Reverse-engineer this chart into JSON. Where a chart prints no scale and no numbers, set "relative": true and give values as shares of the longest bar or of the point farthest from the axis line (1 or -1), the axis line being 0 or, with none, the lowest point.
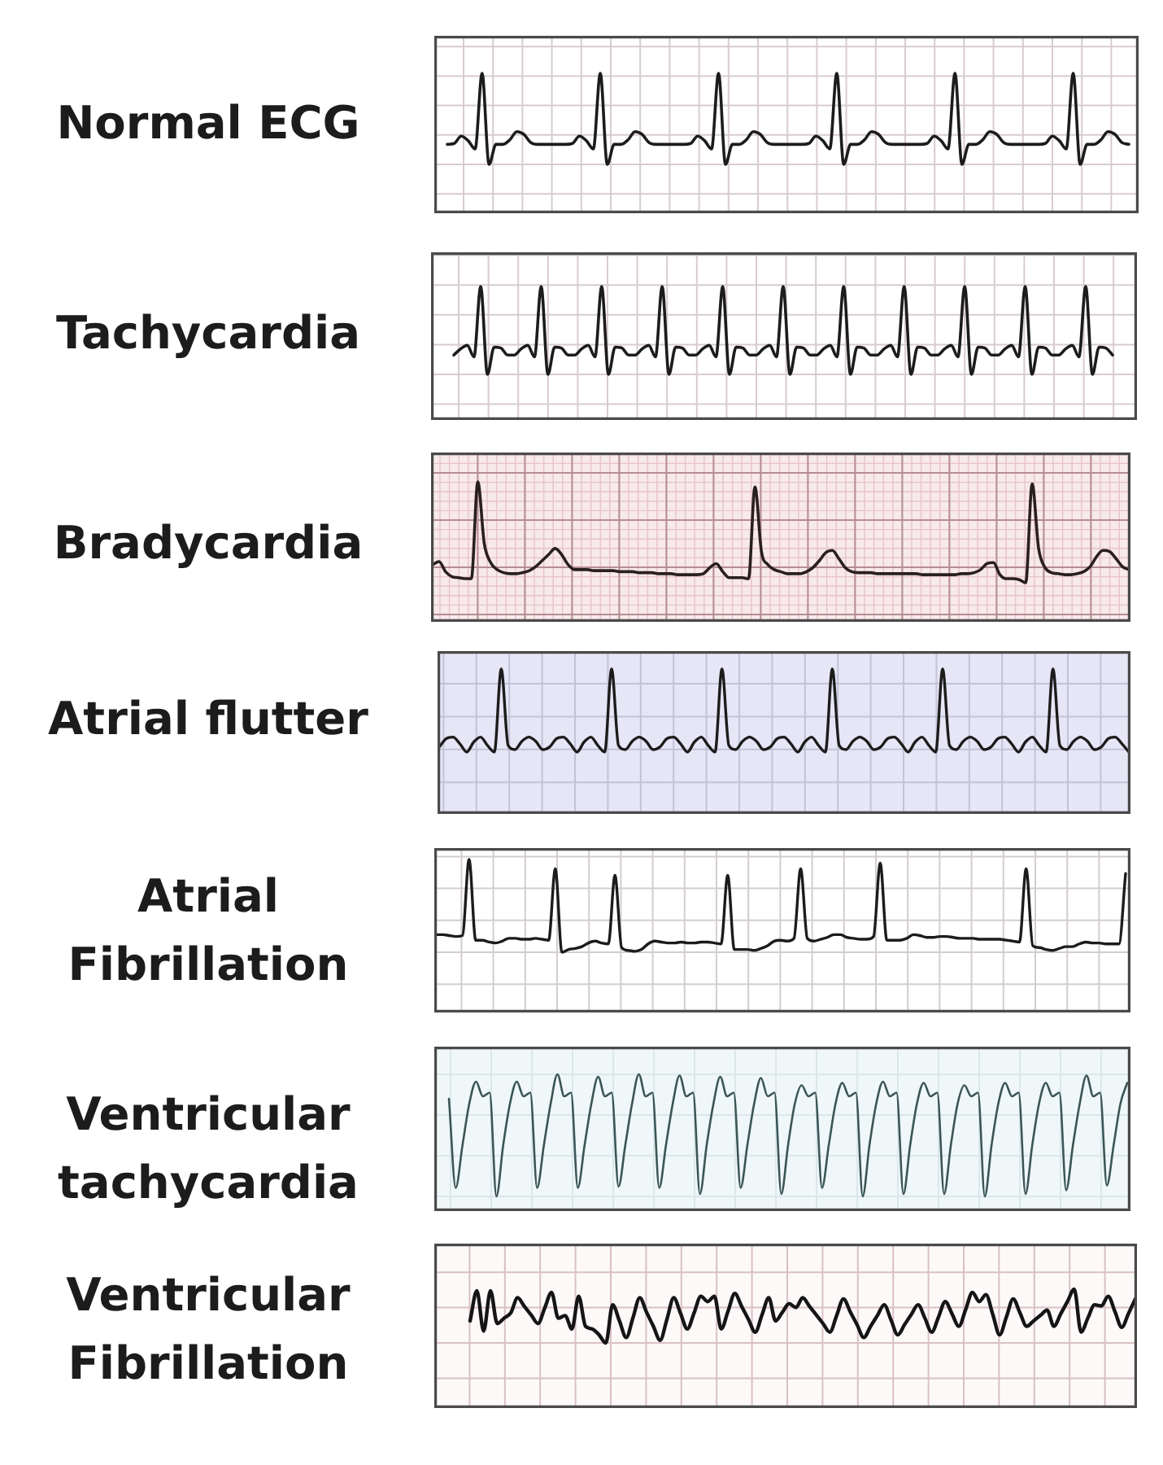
{
  "chart_data": [
    {
      "type": "line",
      "title": "Normal ECG",
      "relative": true,
      "grid": true,
      "color": "#1c1c1c",
      "categories": [
        null,
        null,
        null,
        null,
        null,
        null,
        null,
        null,
        null,
        null,
        null,
        null,
        null,
        null,
        null,
        null,
        null,
        null,
        null,
        null,
        null,
        null,
        null,
        null,
        null,
        null,
        null,
        null,
        null,
        null,
        null,
        null,
        null,
        null,
        null,
        null,
        null,
        null,
        null,
        null,
        null,
        null,
        null,
        null,
        null,
        null,
        null,
        null,
        null,
        null,
        null,
        null,
        null,
        null,
        null,
        null,
        null,
        null,
        null,
        null,
        null,
        null,
        null,
        null,
        null,
        null,
        null,
        null,
        null,
        null,
        null,
        null,
        null,
        null,
        null,
        null,
        null,
        null,
        null,
        null,
        null,
        null,
        null,
        null,
        null,
        null,
        null,
        null,
        null,
        null,
        null,
        null,
        null,
        null,
        null,
        null,
        null,
        null,
        null
      ],
      "values": [
        0.22,
        0.23,
        0.31,
        0.26,
        0.17,
        1,
        0,
        0.22,
        0.22,
        0.27,
        0.36,
        0.33,
        0.24,
        0.22,
        0.22,
        0.22,
        0.22,
        0.22,
        0.23,
        0.31,
        0.26,
        0.17,
        1,
        0,
        0.22,
        0.22,
        0.27,
        0.36,
        0.33,
        0.24,
        0.22,
        0.22,
        0.22,
        0.22,
        0.22,
        0.23,
        0.31,
        0.26,
        0.17,
        1,
        0,
        0.22,
        0.22,
        0.27,
        0.36,
        0.33,
        0.24,
        0.22,
        0.22,
        0.22,
        0.22,
        0.22,
        0.23,
        0.31,
        0.26,
        0.17,
        1,
        0,
        0.22,
        0.22,
        0.27,
        0.36,
        0.33,
        0.24,
        0.22,
        0.22,
        0.22,
        0.22,
        0.22,
        0.23,
        0.31,
        0.26,
        0.17,
        1,
        0,
        0.22,
        0.22,
        0.27,
        0.36,
        0.33,
        0.24,
        0.22,
        0.22,
        0.22,
        0.22,
        0.22,
        0.23,
        0.31,
        0.26,
        0.17,
        1,
        0,
        0.22,
        0.22,
        0.27,
        0.36,
        0.33,
        0.24,
        0.22
      ]
    },
    {
      "type": "line",
      "title": "Tachycardia",
      "relative": true,
      "grid": true,
      "color": "#1c1c1c",
      "categories": [
        null,
        null,
        null,
        null,
        null,
        null,
        null,
        null,
        null,
        null,
        null,
        null,
        null,
        null,
        null,
        null,
        null,
        null,
        null,
        null,
        null,
        null,
        null,
        null,
        null,
        null,
        null,
        null,
        null,
        null,
        null,
        null,
        null,
        null,
        null,
        null,
        null,
        null,
        null,
        null,
        null,
        null,
        null,
        null,
        null,
        null,
        null,
        null,
        null,
        null,
        null,
        null,
        null,
        null,
        null,
        null,
        null,
        null,
        null,
        null,
        null,
        null,
        null,
        null,
        null,
        null,
        null,
        null,
        null,
        null,
        null,
        null,
        null,
        null,
        null,
        null,
        null,
        null,
        null,
        null,
        null,
        null,
        null,
        null,
        null,
        null,
        null,
        null,
        null,
        null,
        null,
        null,
        null,
        null,
        null,
        null,
        null,
        null,
        null
      ],
      "values": [
        0.22,
        0.29,
        0.33,
        0.2,
        1,
        0,
        0.31,
        0.3,
        0.22,
        0.22,
        0.29,
        0.33,
        0.2,
        1,
        0,
        0.31,
        0.3,
        0.22,
        0.22,
        0.29,
        0.33,
        0.2,
        1,
        0,
        0.31,
        0.3,
        0.22,
        0.22,
        0.29,
        0.33,
        0.2,
        1,
        0,
        0.31,
        0.3,
        0.22,
        0.22,
        0.29,
        0.33,
        0.2,
        1,
        0,
        0.31,
        0.3,
        0.22,
        0.22,
        0.29,
        0.33,
        0.2,
        1,
        0,
        0.31,
        0.3,
        0.22,
        0.22,
        0.29,
        0.33,
        0.2,
        1,
        0,
        0.31,
        0.3,
        0.22,
        0.22,
        0.29,
        0.33,
        0.2,
        1,
        0,
        0.31,
        0.3,
        0.22,
        0.22,
        0.29,
        0.33,
        0.2,
        1,
        0,
        0.31,
        0.3,
        0.22,
        0.22,
        0.29,
        0.33,
        0.2,
        1,
        0,
        0.31,
        0.3,
        0.22,
        0.22,
        0.29,
        0.33,
        0.2,
        1,
        0,
        0.31,
        0.3,
        0.22
      ]
    },
    {
      "type": "line",
      "title": "Bradycardia",
      "relative": true,
      "grid": true,
      "color": "#2a1f1f",
      "categories": [
        null,
        null,
        null,
        null,
        null,
        null,
        null,
        null,
        null,
        null,
        null,
        null,
        null,
        null,
        null,
        null,
        null,
        null,
        null,
        null,
        null,
        null,
        null,
        null,
        null,
        null,
        null,
        null,
        null,
        null,
        null,
        null,
        null,
        null,
        null,
        null,
        null,
        null,
        null,
        null,
        null,
        null,
        null,
        null,
        null,
        null,
        null,
        null,
        null,
        null,
        null,
        null,
        null,
        null,
        null,
        null,
        null,
        null,
        null,
        null,
        null,
        null,
        null,
        null,
        null,
        null,
        null,
        null,
        null,
        null,
        null,
        null,
        null,
        null,
        null,
        null,
        null,
        null,
        null,
        null,
        null,
        null,
        null,
        null,
        null,
        null,
        null,
        null,
        null,
        null,
        null,
        null,
        null,
        null,
        null,
        null,
        null,
        null,
        null,
        null,
        null,
        null,
        null,
        null,
        null,
        null,
        null,
        null,
        null
      ],
      "values": [
        0.18,
        0.21,
        0.11,
        0.06,
        0.05,
        0.04,
        0.04,
        1,
        0.39,
        0.2,
        0.13,
        0.1,
        0.09,
        0.09,
        0.1,
        0.12,
        0.16,
        0.22,
        0.28,
        0.34,
        0.28,
        0.18,
        0.13,
        0.13,
        0.13,
        0.12,
        0.12,
        0.12,
        0.12,
        0.11,
        0.11,
        0.11,
        0.1,
        0.1,
        0.1,
        0.09,
        0.09,
        0.09,
        0.08,
        0.08,
        0.08,
        0.08,
        0.09,
        0.15,
        0.19,
        0.11,
        0.05,
        0.05,
        0.05,
        0.04,
        0.95,
        0.31,
        0.18,
        0.13,
        0.11,
        0.09,
        0.09,
        0.09,
        0.11,
        0.15,
        0.22,
        0.3,
        0.32,
        0.24,
        0.15,
        0.11,
        0.1,
        0.1,
        0.1,
        0.09,
        0.09,
        0.09,
        0.09,
        0.09,
        0.09,
        0.09,
        0.08,
        0.08,
        0.08,
        0.08,
        0.08,
        0.08,
        0.09,
        0.09,
        0.1,
        0.13,
        0.19,
        0.2,
        0.08,
        0.04,
        0.04,
        0.03,
        0,
        0.98,
        0.34,
        0.15,
        0.1,
        0.09,
        0.08,
        0.08,
        0.09,
        0.11,
        0.16,
        0.26,
        0.32,
        0.31,
        0.24,
        0.16,
        0.13
      ]
    },
    {
      "type": "line",
      "title": "Atrial flutter",
      "relative": true,
      "grid": true,
      "color": "#1c1c1c",
      "categories": [
        null,
        null,
        null,
        null,
        null,
        null,
        null,
        null,
        null,
        null,
        null,
        null,
        null,
        null,
        null,
        null,
        null,
        null,
        null,
        null,
        null,
        null,
        null,
        null,
        null,
        null,
        null,
        null,
        null,
        null,
        null,
        null,
        null,
        null,
        null,
        null,
        null,
        null,
        null,
        null,
        null,
        null,
        null,
        null,
        null,
        null,
        null,
        null,
        null,
        null,
        null,
        null,
        null,
        null,
        null,
        null,
        null,
        null,
        null,
        null,
        null,
        null,
        null,
        null,
        null,
        null,
        null,
        null,
        null,
        null,
        null,
        null,
        null,
        null,
        null,
        null,
        null,
        null,
        null,
        null,
        null,
        null,
        null,
        null,
        null,
        null,
        null,
        null,
        null,
        null,
        null,
        null,
        null,
        null,
        null,
        null,
        null,
        null,
        null,
        null,
        null
      ],
      "values": [
        0.06,
        0.16,
        0.18,
        0.1,
        0,
        0.12,
        0.18,
        0.08,
        0,
        1,
        0.08,
        0.03,
        0.13,
        0.18,
        0.13,
        0.03,
        0.06,
        0.16,
        0.18,
        0.1,
        0,
        0.12,
        0.18,
        0.08,
        0,
        1,
        0.08,
        0.03,
        0.13,
        0.18,
        0.13,
        0.03,
        0.06,
        0.16,
        0.18,
        0.1,
        0,
        0.12,
        0.18,
        0.08,
        0,
        1,
        0.08,
        0.03,
        0.13,
        0.18,
        0.13,
        0.03,
        0.06,
        0.16,
        0.18,
        0.1,
        0,
        0.12,
        0.18,
        0.08,
        0,
        1,
        0.08,
        0.03,
        0.13,
        0.18,
        0.13,
        0.03,
        0.06,
        0.16,
        0.18,
        0.1,
        0,
        0.12,
        0.18,
        0.08,
        0,
        1,
        0.08,
        0.03,
        0.13,
        0.18,
        0.13,
        0.03,
        0.06,
        0.16,
        0.18,
        0.1,
        0,
        0.12,
        0.18,
        0.08,
        0,
        1,
        0.08,
        0.03,
        0.13,
        0.18,
        0.13,
        0.03,
        0.06,
        0.16,
        0.18,
        0.1,
        0
      ]
    },
    {
      "type": "line",
      "title": "Atrial Fibrillation",
      "relative": true,
      "grid": true,
      "color": "#1c1c1c",
      "categories": [
        null,
        null,
        null,
        null,
        null,
        null,
        null,
        null,
        null,
        null,
        null,
        null,
        null,
        null,
        null,
        null,
        null,
        null,
        null,
        null,
        null,
        null,
        null,
        null,
        null,
        null,
        null,
        null,
        null,
        null,
        null,
        null,
        null,
        null,
        null,
        null,
        null,
        null,
        null,
        null,
        null,
        null,
        null,
        null,
        null,
        null,
        null,
        null,
        null,
        null,
        null,
        null,
        null,
        null,
        null,
        null,
        null,
        null,
        null,
        null,
        null,
        null,
        null,
        null,
        null,
        null,
        null,
        null,
        null,
        null,
        null,
        null,
        null,
        null,
        null,
        null,
        null,
        null,
        null,
        null,
        null,
        null,
        null,
        null,
        null,
        null,
        null,
        null,
        null,
        null,
        null,
        null,
        null,
        null,
        null,
        null,
        null,
        null,
        null,
        null,
        null,
        null,
        null,
        null,
        null
      ],
      "values": [
        0.19,
        0.19,
        0.18,
        0.17,
        0.18,
        1,
        0.13,
        0.13,
        0.11,
        0.1,
        0.12,
        0.15,
        0.15,
        0.14,
        0.14,
        0.15,
        0.14,
        0.13,
        0.9,
        0,
        0.03,
        0.04,
        0.06,
        0.1,
        0.12,
        0.1,
        0.09,
        0.83,
        0.05,
        0.02,
        0.01,
        0.03,
        0.09,
        0.12,
        0.11,
        0.1,
        0.1,
        0.11,
        0.1,
        0.1,
        0.11,
        0.11,
        0.1,
        0.09,
        0.83,
        0.03,
        0.03,
        0.03,
        0.02,
        0.04,
        0.07,
        0.12,
        0.13,
        0.12,
        0.15,
        0.9,
        0.15,
        0.12,
        0.14,
        0.16,
        0.19,
        0.19,
        0.16,
        0.15,
        0.14,
        0.14,
        0.17,
        0.96,
        0.13,
        0.13,
        0.13,
        0.15,
        0.19,
        0.18,
        0.16,
        0.16,
        0.17,
        0.17,
        0.16,
        0.15,
        0.15,
        0.15,
        0.14,
        0.14,
        0.14,
        0.14,
        0.13,
        0.12,
        0.11,
        0.9,
        0.07,
        0.05,
        0.03,
        0.02,
        0.04,
        0.06,
        0.06,
        0.09,
        0.11,
        0.1,
        0.1,
        0.09,
        0.09,
        0.09,
        0.85
      ]
    },
    {
      "type": "line",
      "title": "Ventricular tachycardia",
      "relative": true,
      "grid": true,
      "color": "#3b5556",
      "categories": [
        null,
        null,
        null,
        null,
        null,
        null,
        null,
        null,
        null,
        null,
        null,
        null,
        null,
        null,
        null,
        null,
        null,
        null,
        null,
        null,
        null,
        null,
        null,
        null,
        null,
        null,
        null,
        null,
        null,
        null,
        null,
        null,
        null,
        null,
        null,
        null,
        null,
        null,
        null,
        null,
        null,
        null,
        null,
        null,
        null,
        null,
        null,
        null,
        null,
        null,
        null,
        null,
        null,
        null,
        null,
        null,
        null,
        null,
        null,
        null,
        null,
        null,
        null,
        null,
        null,
        null,
        null,
        null,
        null,
        null,
        null,
        null,
        null,
        null,
        null,
        null,
        null,
        null,
        null,
        null,
        null,
        null,
        null,
        null,
        null,
        null,
        null,
        null,
        null,
        null,
        null,
        null,
        null,
        null,
        null,
        null,
        null,
        null,
        null,
        null,
        null
      ],
      "values": [
        0.8,
        0.07,
        0.42,
        0.76,
        0.94,
        0.82,
        0.85,
        0,
        0.42,
        0.76,
        0.94,
        0.82,
        0.85,
        0.07,
        0.42,
        0.76,
        1,
        0.82,
        0.85,
        0.07,
        0.42,
        0.76,
        0.98,
        0.82,
        0.85,
        0.08,
        0.42,
        0.76,
        1,
        0.82,
        0.85,
        0.07,
        0.42,
        0.76,
        0.99,
        0.82,
        0.85,
        0.02,
        0.42,
        0.76,
        0.98,
        0.82,
        0.85,
        0.07,
        0.42,
        0.76,
        0.97,
        0.82,
        0.85,
        0.02,
        0.42,
        0.76,
        0.91,
        0.82,
        0.85,
        0.07,
        0.42,
        0.76,
        0.93,
        0.82,
        0.85,
        0,
        0.42,
        0.76,
        0.94,
        0.82,
        0.85,
        0.02,
        0.42,
        0.76,
        0.93,
        0.82,
        0.85,
        0.02,
        0.42,
        0.76,
        0.91,
        0.82,
        0.85,
        0,
        0.42,
        0.76,
        0.93,
        0.82,
        0.85,
        0.02,
        0.42,
        0.76,
        0.93,
        0.82,
        0.85,
        0.05,
        0.42,
        0.76,
        0.99,
        0.82,
        0.85,
        0.09,
        0.42,
        0.76,
        0.93
      ]
    },
    {
      "type": "line",
      "title": "Ventricular Fibrillation",
      "relative": true,
      "grid": true,
      "color": "#151515",
      "categories": [
        null,
        null,
        null,
        null,
        null,
        null,
        null,
        null,
        null,
        null,
        null,
        null,
        null,
        null,
        null,
        null,
        null,
        null,
        null,
        null,
        null,
        null,
        null,
        null,
        null,
        null,
        null,
        null,
        null,
        null,
        null,
        null,
        null,
        null,
        null,
        null,
        null,
        null,
        null,
        null,
        null,
        null,
        null,
        null,
        null,
        null,
        null,
        null,
        null,
        null,
        null,
        null,
        null,
        null,
        null,
        null,
        null,
        null,
        null,
        null,
        null,
        null,
        null,
        null,
        null,
        null,
        null,
        null,
        null,
        null,
        null,
        null,
        null,
        null,
        null,
        null,
        null,
        null,
        null,
        null,
        null,
        null,
        null,
        null,
        null,
        null,
        null,
        null,
        null,
        null,
        null,
        null,
        null,
        null,
        null,
        null,
        null,
        null,
        null
      ],
      "values": [
        0.41,
        0.97,
        0.22,
        0.97,
        0.36,
        0.46,
        0.56,
        0.84,
        0.68,
        0.52,
        0.36,
        0.65,
        0.94,
        0.46,
        0.51,
        0.26,
        0.87,
        0.31,
        0.26,
        0.15,
        0,
        0.71,
        0.41,
        0.1,
        0.47,
        0.84,
        0.57,
        0.31,
        0.05,
        0.44,
        0.84,
        0.55,
        0.26,
        0.56,
        0.87,
        0.77,
        0.87,
        0.26,
        0.59,
        0.92,
        0.68,
        0.44,
        0.2,
        0.52,
        0.84,
        0.41,
        0.57,
        0.73,
        0.66,
        0.84,
        0.68,
        0.52,
        0.36,
        0.2,
        0.51,
        0.82,
        0.58,
        0.34,
        0.1,
        0.31,
        0.51,
        0.71,
        0.43,
        0.15,
        0.34,
        0.53,
        0.71,
        0.46,
        0.2,
        0.48,
        0.77,
        0.54,
        0.31,
        0.62,
        0.94,
        0.77,
        0.9,
        0.53,
        0.15,
        0.48,
        0.82,
        0.56,
        0.31,
        0.41,
        0.51,
        0.61,
        0.31,
        0.54,
        0.77,
        1,
        0.2,
        0.46,
        0.71,
        0.69,
        0.87,
        0.58,
        0.29,
        0.55,
        0.82
      ]
    }
  ]
}
